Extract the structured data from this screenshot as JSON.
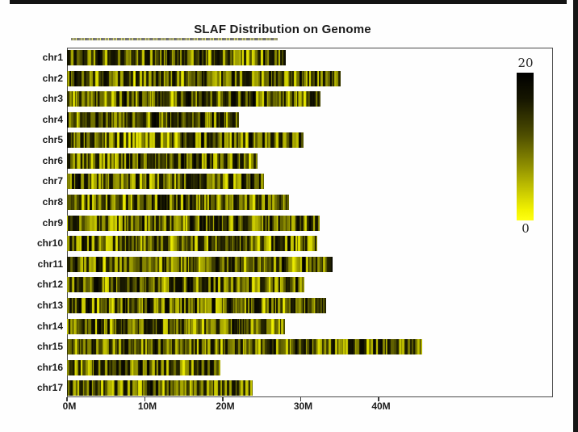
{
  "title": "SLAF Distribution on Genome",
  "chart_data": {
    "type": "heatmap",
    "subtype": "chromosome-density-barcode",
    "title": "SLAF Distribution on Genome",
    "categories": [
      "chr1",
      "chr2",
      "chr3",
      "chr4",
      "chr5",
      "chr6",
      "chr7",
      "chr8",
      "chr9",
      "chr10",
      "chr11",
      "chr12",
      "chr13",
      "chr14",
      "chr15",
      "chr16",
      "chr17"
    ],
    "lengths_mb": [
      28.1,
      35.1,
      32.5,
      22.1,
      30.4,
      24.5,
      25.3,
      28.5,
      32.4,
      32.1,
      34.1,
      30.5,
      33.3,
      28.0,
      45.6,
      19.7,
      23.8
    ],
    "xlabel": "",
    "ylabel": "",
    "x_ticks": [
      "0M",
      "10M",
      "20M",
      "30M",
      "40M"
    ],
    "x_tick_values_mb": [
      0,
      10,
      20,
      30,
      40
    ],
    "xlim_mb": [
      0,
      62.4
    ],
    "grid": "off",
    "legend_position": "right",
    "colorbar": {
      "max_label": "20",
      "min_label": "0",
      "max_color": "#000000",
      "min_color": "#ffff00",
      "meaning": "SLAF density per window (0 = yellow, 20 = black)"
    }
  }
}
